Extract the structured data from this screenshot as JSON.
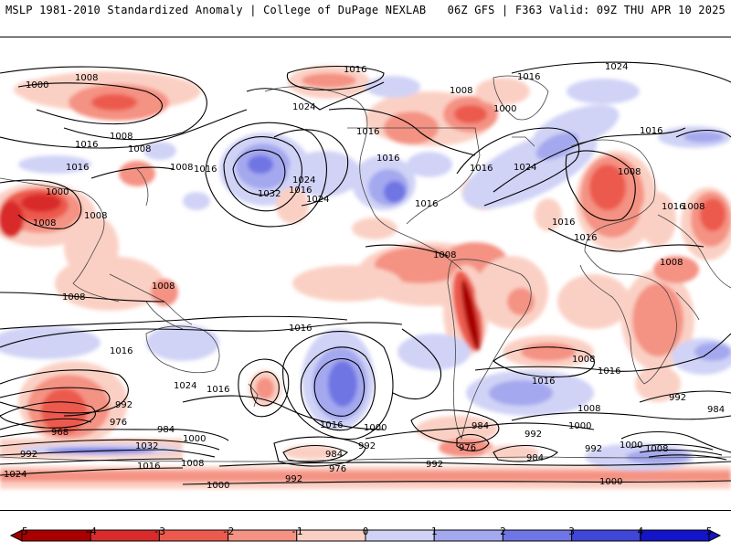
{
  "header": {
    "left_title": "MSLP 1981-2010 Standardized Anomaly | College of DuPage NEXLAB",
    "right_title": "06Z GFS | F363 Valid: 09Z THU APR 10 2025"
  },
  "colors": {
    "neg5": "#a80000",
    "neg4": "#d92b2b",
    "neg3": "#ec5a4e",
    "neg2": "#f49283",
    "neg1": "#fbd0c4",
    "zero": "#ffffff",
    "pos1": "#d0d3f6",
    "pos2": "#a4a8ee",
    "pos3": "#6f75e4",
    "pos4": "#3f46d8",
    "pos5": "#1414c8",
    "land_lines": "#444444",
    "isobars": "#000000"
  },
  "colorbar": {
    "ticks": [
      "-5",
      "-4",
      "-3",
      "-2",
      "-1",
      "0",
      "1",
      "2",
      "3",
      "4",
      "5"
    ]
  },
  "isobar_labels": [
    {
      "id": "l1",
      "text": "1008"
    },
    {
      "id": "l2",
      "text": "1000"
    },
    {
      "id": "l3",
      "text": "1016"
    },
    {
      "id": "l4",
      "text": "1024"
    },
    {
      "id": "l5",
      "text": "1016"
    },
    {
      "id": "l6",
      "text": "1008"
    },
    {
      "id": "l7",
      "text": "1000"
    },
    {
      "id": "l8",
      "text": "1016"
    },
    {
      "id": "l9",
      "text": "1024"
    },
    {
      "id": "l10",
      "text": "1008"
    },
    {
      "id": "l11",
      "text": "1008"
    },
    {
      "id": "l12",
      "text": "1016"
    },
    {
      "id": "l13",
      "text": "1016"
    },
    {
      "id": "l14",
      "text": "1008"
    },
    {
      "id": "l15",
      "text": "1008"
    },
    {
      "id": "l16",
      "text": "1016"
    },
    {
      "id": "l17",
      "text": "1016"
    },
    {
      "id": "l18",
      "text": "1032"
    },
    {
      "id": "l19",
      "text": "1024"
    },
    {
      "id": "l20",
      "text": "1024"
    },
    {
      "id": "l21",
      "text": "1016"
    },
    {
      "id": "l22",
      "text": "1016"
    },
    {
      "id": "l23",
      "text": "1016"
    },
    {
      "id": "l24",
      "text": "1024"
    },
    {
      "id": "l25",
      "text": "1016"
    },
    {
      "id": "l26",
      "text": "1008"
    },
    {
      "id": "l27",
      "text": "1016"
    },
    {
      "id": "l28",
      "text": "1008"
    },
    {
      "id": "l29",
      "text": "1016"
    },
    {
      "id": "l30",
      "text": "1008"
    },
    {
      "id": "l31",
      "text": "1008"
    },
    {
      "id": "l32",
      "text": "1000"
    },
    {
      "id": "l33",
      "text": "1016"
    },
    {
      "id": "l34",
      "text": "1008"
    },
    {
      "id": "l35",
      "text": "1016"
    },
    {
      "id": "l36",
      "text": "1016"
    },
    {
      "id": "l37",
      "text": "1008"
    },
    {
      "id": "l38",
      "text": "1024"
    },
    {
      "id": "l39",
      "text": "1016"
    },
    {
      "id": "l40",
      "text": "1008"
    },
    {
      "id": "l41",
      "text": "992"
    },
    {
      "id": "l42",
      "text": "976"
    },
    {
      "id": "l43",
      "text": "984"
    },
    {
      "id": "l44",
      "text": "968"
    },
    {
      "id": "l45",
      "text": "1000"
    },
    {
      "id": "l46",
      "text": "1032"
    },
    {
      "id": "l47",
      "text": "992"
    },
    {
      "id": "l48",
      "text": "1024"
    },
    {
      "id": "l49",
      "text": "1016"
    },
    {
      "id": "l50",
      "text": "1008"
    },
    {
      "id": "l51",
      "text": "1000"
    },
    {
      "id": "l52",
      "text": "1016"
    },
    {
      "id": "l53",
      "text": "1000"
    },
    {
      "id": "l54",
      "text": "984"
    },
    {
      "id": "l55",
      "text": "976"
    },
    {
      "id": "l56",
      "text": "992"
    },
    {
      "id": "l57",
      "text": "992"
    },
    {
      "id": "l58",
      "text": "1016"
    },
    {
      "id": "l59",
      "text": "1008"
    },
    {
      "id": "l60",
      "text": "984"
    },
    {
      "id": "l61",
      "text": "992"
    },
    {
      "id": "l62",
      "text": "976"
    },
    {
      "id": "l63",
      "text": "984"
    },
    {
      "id": "l64",
      "text": "1000"
    },
    {
      "id": "l65",
      "text": "992"
    },
    {
      "id": "l66",
      "text": "1000"
    },
    {
      "id": "l67",
      "text": "1008"
    },
    {
      "id": "l68",
      "text": "1016"
    },
    {
      "id": "l69",
      "text": "992"
    },
    {
      "id": "l70",
      "text": "984"
    },
    {
      "id": "l71",
      "text": "1008"
    },
    {
      "id": "l72",
      "text": "992"
    },
    {
      "id": "l73",
      "text": "1000"
    }
  ]
}
